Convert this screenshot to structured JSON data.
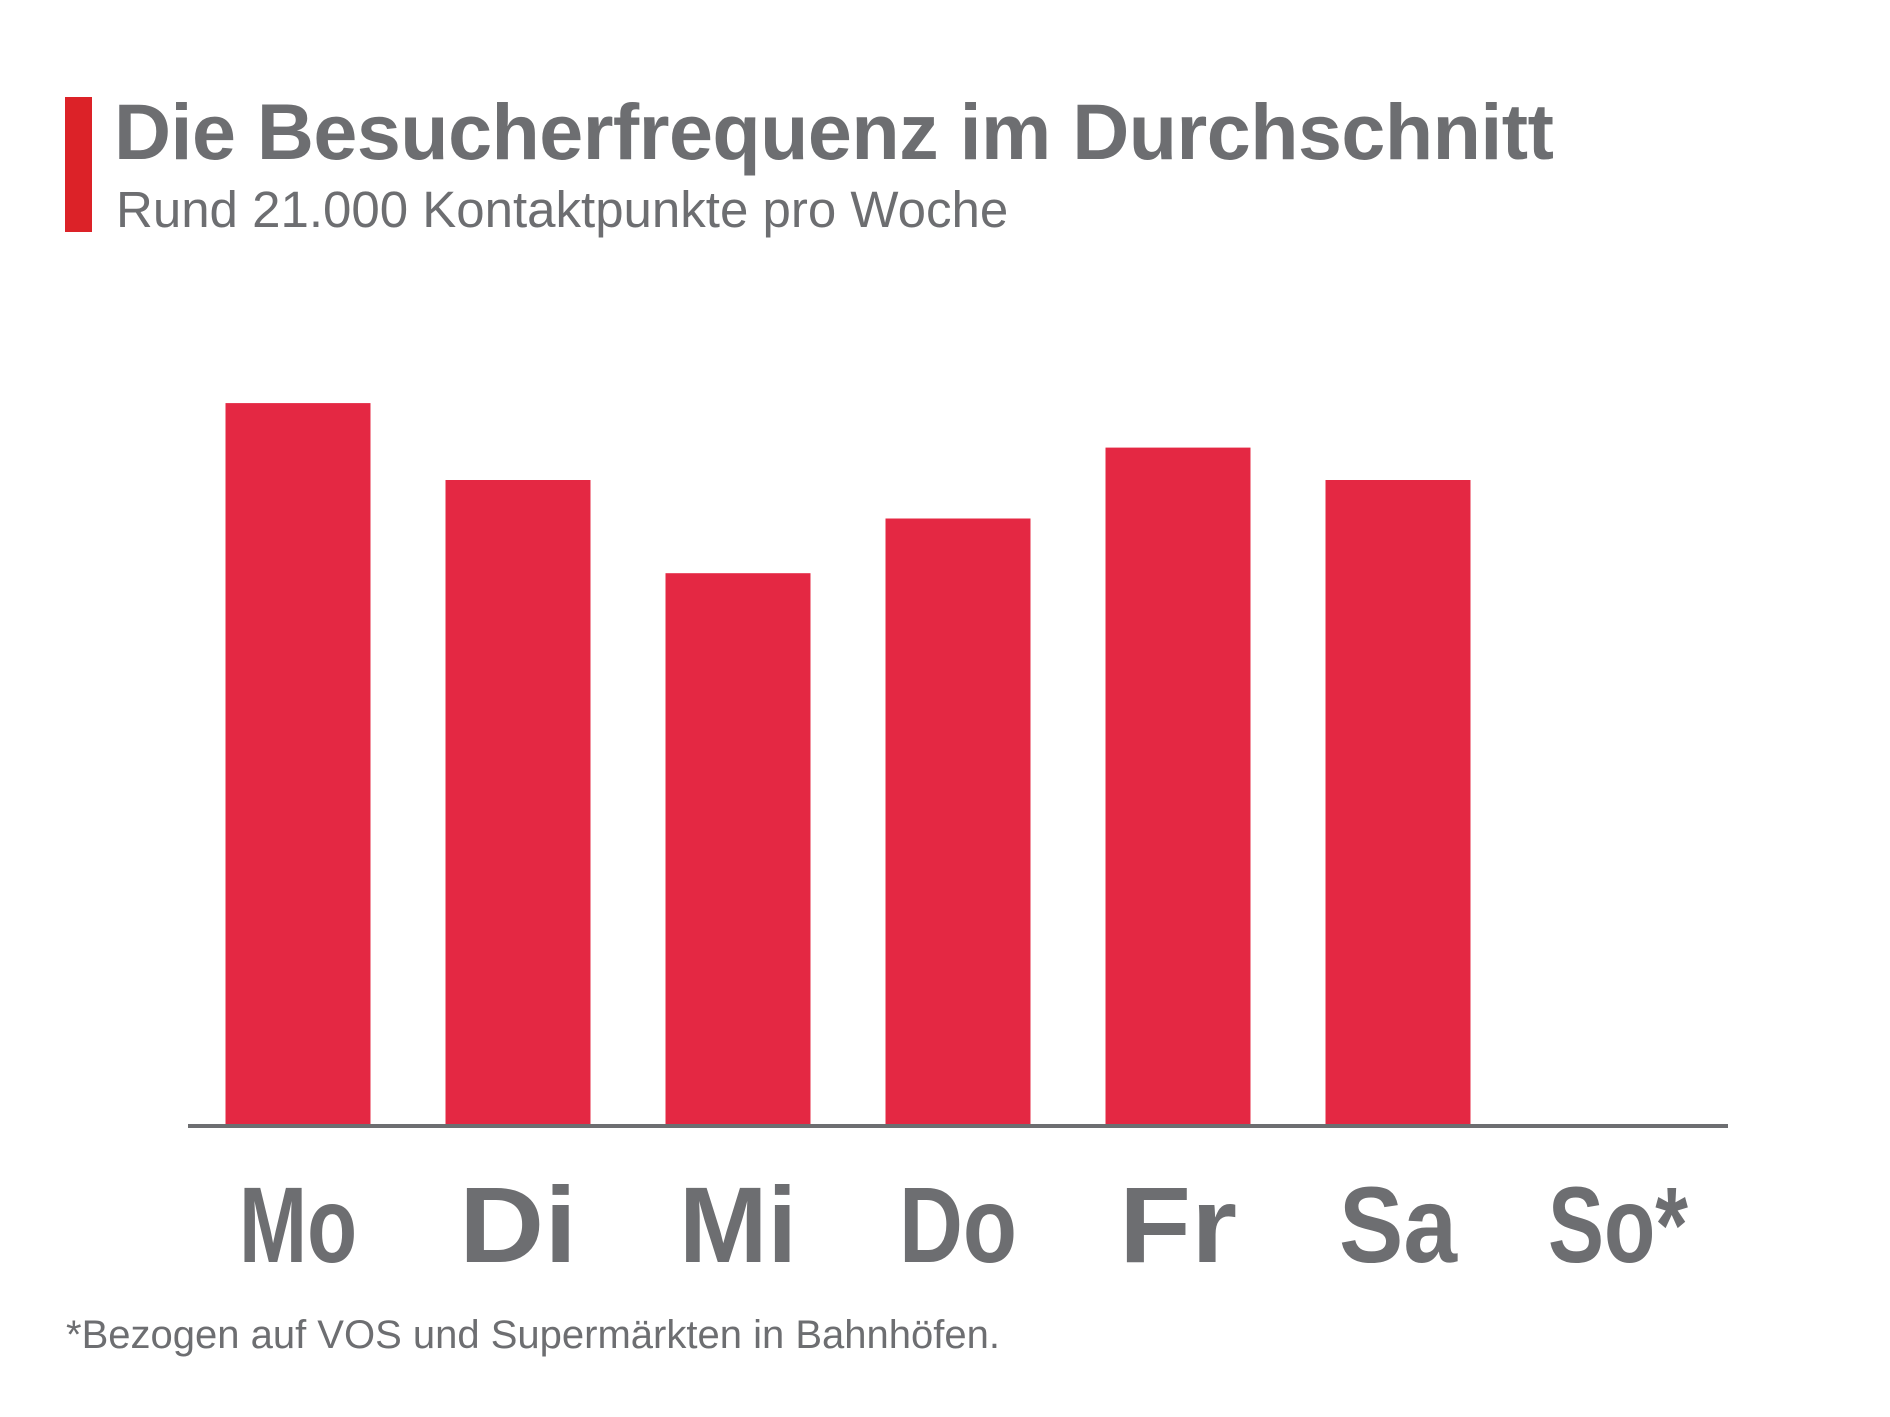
{
  "header": {
    "title": "Die Besucherfrequenz im Durchschnitt",
    "subtitle": "Rund 21.000 Kontaktpunkte pro Woche"
  },
  "footnote": "*Bezogen auf VOS und Supermärkten in Bahnhöfen.",
  "colors": {
    "accent": "#dc2228",
    "bar": "#e42843",
    "axis": "#6d6e71",
    "text": "#6d6e71"
  },
  "chart_data": {
    "type": "bar",
    "title": "Die Besucherfrequenz im Durchschnitt",
    "subtitle": "Rund 21.000 Kontaktpunkte pro Woche",
    "categories": [
      "Mo",
      "Di",
      "Mi",
      "Do",
      "Fr",
      "Sa",
      "So*"
    ],
    "values": [
      3560,
      3180,
      2720,
      2990,
      3340,
      3180,
      0
    ],
    "xlabel": "",
    "ylabel": "",
    "ylim": [
      0,
      4000
    ],
    "grid": false,
    "legend": "none"
  }
}
